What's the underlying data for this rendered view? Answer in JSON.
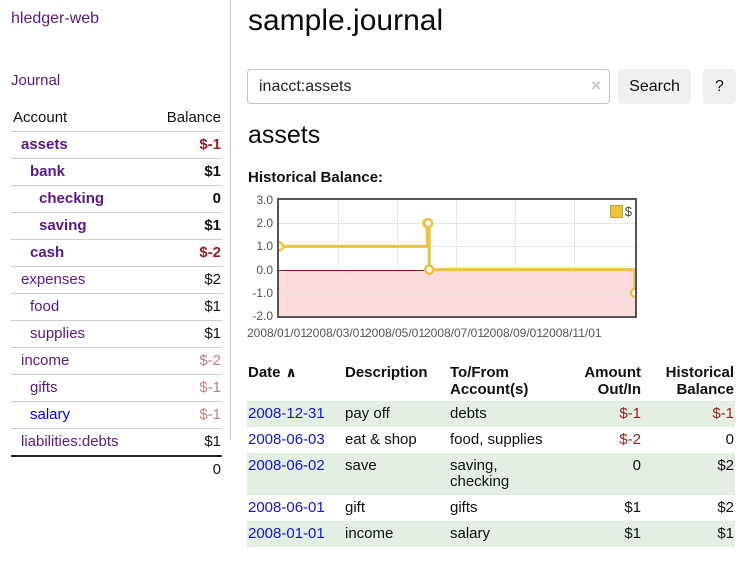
{
  "sidebar": {
    "brand": "hledger-web",
    "journal_link": "Journal",
    "accounts": {
      "col_account": "Account",
      "col_balance": "Balance",
      "rows": [
        {
          "name": "assets",
          "indent": 1,
          "bold": true,
          "link": "purple",
          "balance": "$-1",
          "balance_style": "neg-strong",
          "balance_bold": true
        },
        {
          "name": "bank",
          "indent": 2,
          "bold": true,
          "link": "purple",
          "balance": "$1",
          "balance_style": "pos",
          "balance_bold": true
        },
        {
          "name": "checking",
          "indent": 3,
          "bold": true,
          "link": "purple",
          "balance": "0",
          "balance_style": "pos",
          "balance_bold": true
        },
        {
          "name": "saving",
          "indent": 3,
          "bold": true,
          "link": "purple",
          "balance": "$1",
          "balance_style": "pos",
          "balance_bold": true
        },
        {
          "name": "cash",
          "indent": 2,
          "bold": true,
          "link": "purple",
          "balance": "$-2",
          "balance_style": "neg-strong",
          "balance_bold": true
        },
        {
          "name": "expenses",
          "indent": 1,
          "bold": false,
          "link": "purple",
          "balance": "$2",
          "balance_style": "pos",
          "balance_bold": false
        },
        {
          "name": "food",
          "indent": 2,
          "bold": false,
          "link": "purple",
          "balance": "$1",
          "balance_style": "pos",
          "balance_bold": false
        },
        {
          "name": "supplies",
          "indent": 2,
          "bold": false,
          "link": "purple",
          "balance": "$1",
          "balance_style": "pos",
          "balance_bold": false
        },
        {
          "name": "income",
          "indent": 1,
          "bold": false,
          "link": "purple",
          "balance": "$-2",
          "balance_style": "neg-soft",
          "balance_bold": false
        },
        {
          "name": "gifts",
          "indent": 2,
          "bold": false,
          "link": "purple",
          "balance": "$-1",
          "balance_style": "neg-soft",
          "balance_bold": false
        },
        {
          "name": "salary",
          "indent": 2,
          "bold": false,
          "link": "blue",
          "balance": "$-1",
          "balance_style": "neg-soft",
          "balance_bold": false
        },
        {
          "name": "liabilities:debts",
          "indent": 1,
          "bold": false,
          "link": "purple",
          "balance": "$1",
          "balance_style": "pos",
          "balance_bold": false
        }
      ],
      "total": "0"
    }
  },
  "header": {
    "title": "sample.journal"
  },
  "search": {
    "value": "inacct:assets",
    "clear_icon": "×",
    "button_label": "Search",
    "help_label": "?"
  },
  "account_page": {
    "heading": "assets",
    "chart_label": "Historical Balance:"
  },
  "chart_data": {
    "type": "line",
    "title": "Historical Balance",
    "step": true,
    "series": [
      {
        "name": "$",
        "color": "#edc240",
        "points": [
          [
            "2008-01-01",
            1
          ],
          [
            "2008-06-01",
            2
          ],
          [
            "2008-06-02",
            2
          ],
          [
            "2008-06-03",
            0
          ],
          [
            "2008-12-31",
            -1
          ]
        ]
      }
    ],
    "x_start": "2008-01-01",
    "x_end": "2008-12-31",
    "x_ticks": [
      "2008/01/01",
      "2008/03/01",
      "2008/05/01",
      "2008/07/01",
      "2008/09/01",
      "2008/11/01"
    ],
    "y_ticks": [
      "3.0",
      "2.0",
      "1.0",
      "0.0",
      "-1.0",
      "-2.0"
    ],
    "ylim": [
      -2,
      3
    ],
    "grid": true,
    "legend": {
      "label": "$",
      "position": "top-right"
    },
    "negative_region_color": "#fbdbdb",
    "zero_line_color": "#8b1a1a"
  },
  "register": {
    "columns": [
      {
        "line1": "Date",
        "line2": "",
        "align": "l",
        "sortable": true
      },
      {
        "line1": "Description",
        "line2": "",
        "align": "l",
        "sortable": false
      },
      {
        "line1": "To/From",
        "line2": "Account(s)",
        "align": "l",
        "sortable": false
      },
      {
        "line1": "Amount",
        "line2": "Out/In",
        "align": "r",
        "sortable": false
      },
      {
        "line1": "Historical",
        "line2": "Balance",
        "align": "r",
        "sortable": false
      }
    ],
    "sort_icon": "∧",
    "rows": [
      {
        "date": "2008-12-31",
        "description": "pay off",
        "accounts": "debts",
        "amount": "$-1",
        "amount_neg": true,
        "balance": "$-1",
        "balance_neg": true
      },
      {
        "date": "2008-06-03",
        "description": "eat & shop",
        "accounts": "food, supplies",
        "amount": "$-2",
        "amount_neg": true,
        "balance": "0",
        "balance_neg": false
      },
      {
        "date": "2008-06-02",
        "description": "save",
        "accounts": "saving, checking",
        "amount": "0",
        "amount_neg": false,
        "balance": "$2",
        "balance_neg": false
      },
      {
        "date": "2008-06-01",
        "description": "gift",
        "accounts": "gifts",
        "amount": "$1",
        "amount_neg": false,
        "balance": "$2",
        "balance_neg": false
      },
      {
        "date": "2008-01-01",
        "description": "income",
        "accounts": "salary",
        "amount": "$1",
        "amount_neg": false,
        "balance": "$1",
        "balance_neg": false
      }
    ]
  }
}
